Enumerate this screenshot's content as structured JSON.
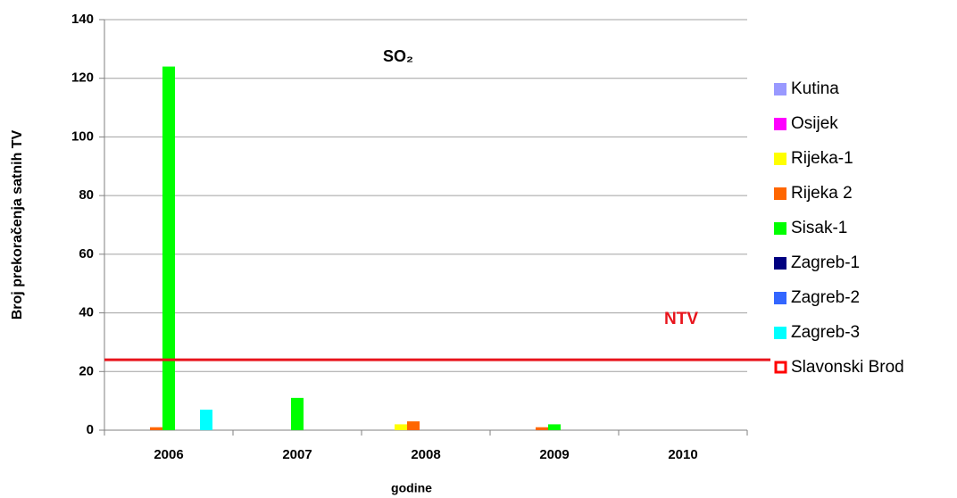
{
  "chart_data": {
    "type": "bar",
    "title": "SO₂",
    "x_label": "godine",
    "y_label": "Broj prekoračenja satnih TV",
    "categories": [
      "2006",
      "2007",
      "2008",
      "2009",
      "2010"
    ],
    "series": [
      {
        "name": "Kutina",
        "color": "#9999ff",
        "values": [
          0,
          0,
          0,
          0,
          0
        ]
      },
      {
        "name": "Osijek",
        "color": "#ff00ff",
        "values": [
          0,
          0,
          0,
          0,
          0
        ]
      },
      {
        "name": "Rijeka-1",
        "color": "#ffff00",
        "values": [
          0,
          0,
          2,
          0,
          0
        ]
      },
      {
        "name": "Rijeka 2",
        "color": "#ff6600",
        "values": [
          1,
          0,
          3,
          1,
          0
        ]
      },
      {
        "name": "Sisak-1",
        "color": "#00ff00",
        "values": [
          124,
          11,
          0,
          2,
          0
        ]
      },
      {
        "name": "Zagreb-1",
        "color": "#000080",
        "values": [
          0,
          0,
          0,
          0,
          0
        ]
      },
      {
        "name": "Zagreb-2",
        "color": "#3366ff",
        "values": [
          0,
          0,
          0,
          0,
          0
        ]
      },
      {
        "name": "Zagreb-3",
        "color": "#00ffff",
        "values": [
          7,
          0,
          0,
          0,
          0
        ]
      },
      {
        "name": "Slavonski Brod",
        "color": "#ff0000",
        "marker": "outline",
        "values": [
          null,
          null,
          null,
          null,
          null
        ]
      }
    ],
    "threshold": {
      "value": 24,
      "label": "NTV",
      "color": "#e8141c"
    },
    "ylim": [
      0,
      140
    ],
    "yticks": [
      0,
      20,
      40,
      60,
      80,
      100,
      120,
      140
    ],
    "grid": true,
    "legend": "right"
  }
}
